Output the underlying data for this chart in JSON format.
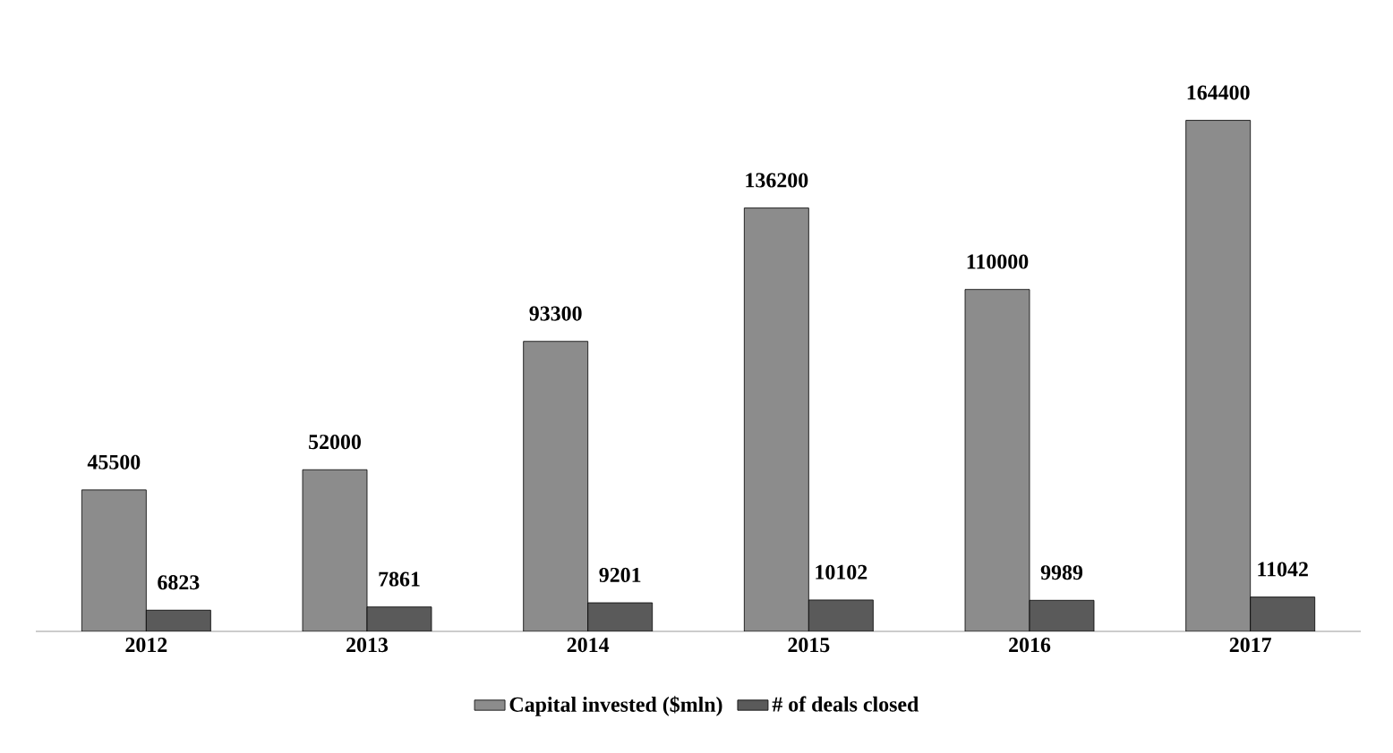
{
  "chart_data": {
    "type": "bar",
    "categories": [
      "2012",
      "2013",
      "2014",
      "2015",
      "2016",
      "2017"
    ],
    "series": [
      {
        "name": "Capital invested ($mln)",
        "color": "#8c8c8c",
        "values": [
          45500,
          52000,
          93300,
          136200,
          110000,
          164400
        ]
      },
      {
        "name": "# of deals closed",
        "color": "#5a5a5a",
        "values": [
          6823,
          7861,
          9201,
          10102,
          9989,
          11042
        ]
      }
    ],
    "data_labels": true,
    "legend": "bottom"
  }
}
